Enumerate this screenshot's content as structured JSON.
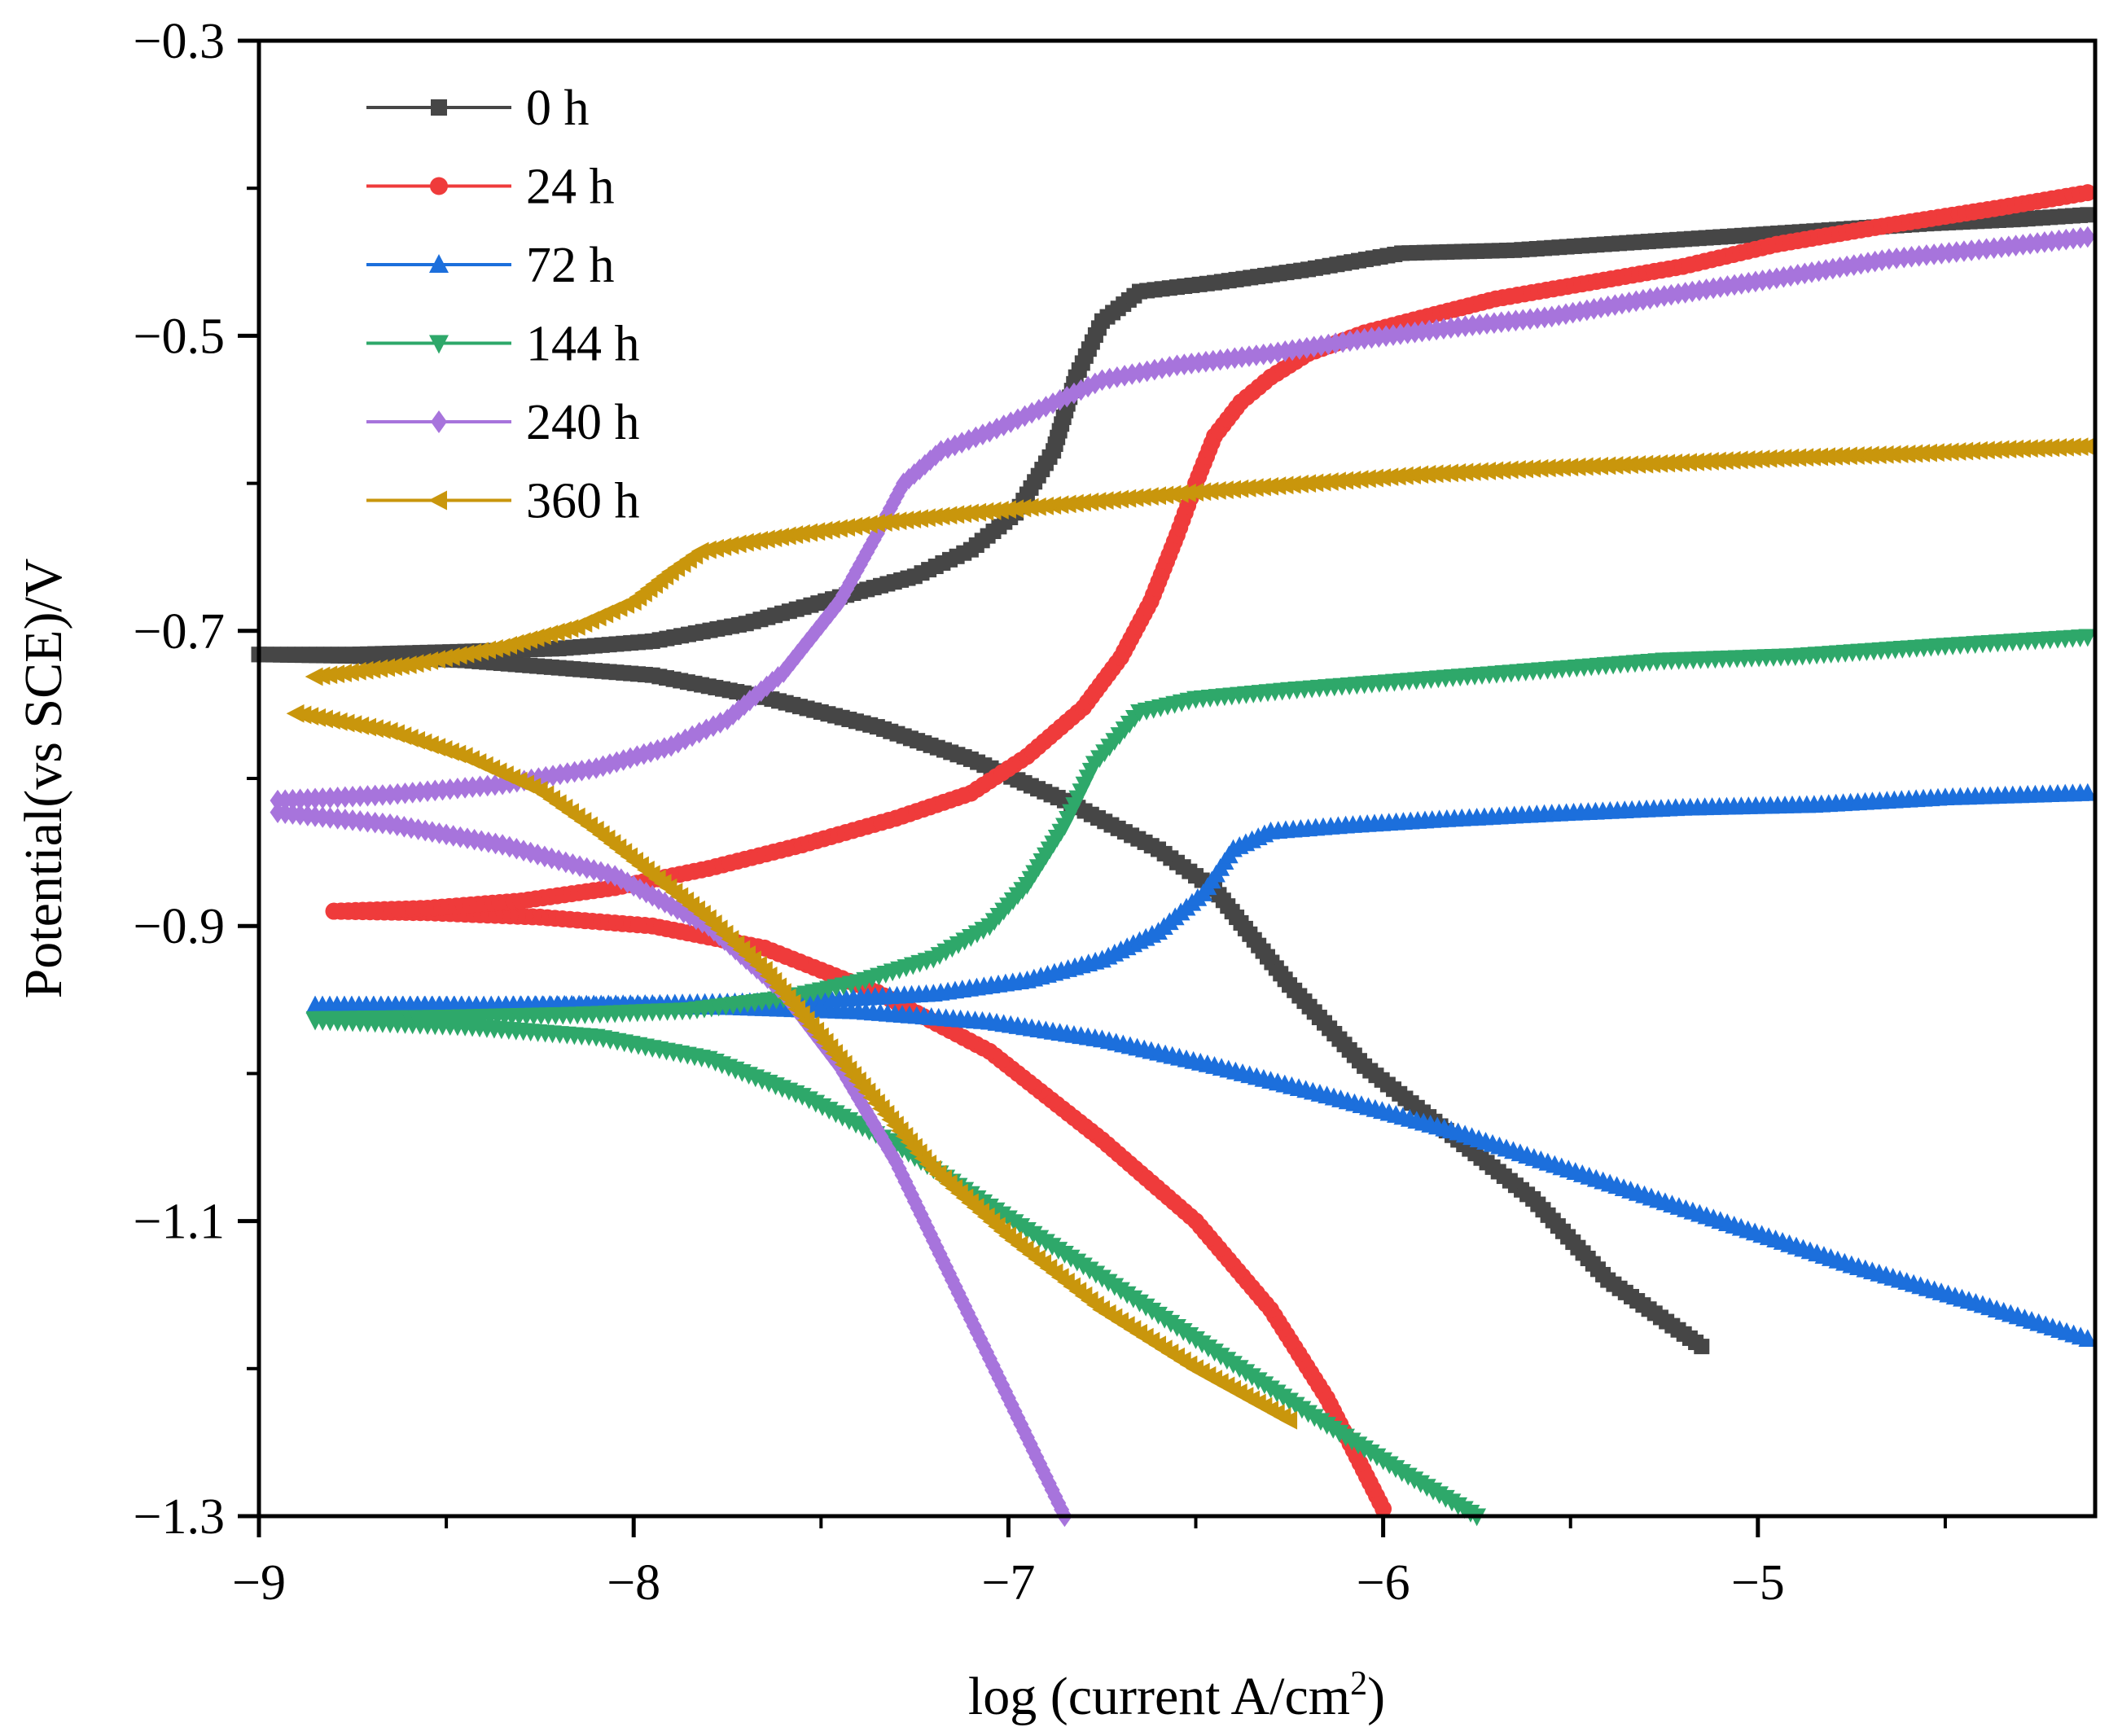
{
  "chart_data": {
    "type": "line",
    "title": "",
    "xlabel": {
      "main": "log (current A/cm",
      "sup": "2",
      "close": ")"
    },
    "ylabel": "Potential(vs SCE)/V",
    "xlim": [
      -9,
      -4.1
    ],
    "ylim": [
      -1.3,
      -0.3
    ],
    "x_ticks": [
      -9,
      -8,
      -7,
      -6,
      -5
    ],
    "x_tick_labels": [
      "−9",
      "−8",
      "−7",
      "−6",
      "−5"
    ],
    "y_ticks": [
      -0.3,
      -0.5,
      -0.7,
      -0.9,
      -1.1,
      -1.3
    ],
    "y_tick_labels": [
      "−0.3",
      "−0.5",
      "−0.7",
      "−0.9",
      "−1.1",
      "−1.3"
    ],
    "legend_position": "top-left",
    "series": [
      {
        "name": "0 h",
        "color": "#464646",
        "marker": "square",
        "cathodic": [
          [
            -5.15,
            -1.185
          ],
          [
            -5.4,
            -1.14
          ],
          [
            -5.6,
            -1.085
          ],
          [
            -5.8,
            -1.045
          ],
          [
            -6.05,
            -0.995
          ],
          [
            -6.25,
            -0.94
          ],
          [
            -6.45,
            -0.875
          ],
          [
            -6.6,
            -0.848
          ],
          [
            -6.85,
            -0.815
          ],
          [
            -7.1,
            -0.787
          ],
          [
            -7.35,
            -0.765
          ],
          [
            -7.65,
            -0.745
          ],
          [
            -7.95,
            -0.73
          ],
          [
            -8.2,
            -0.725
          ],
          [
            -8.45,
            -0.72
          ],
          [
            -8.75,
            -0.717
          ],
          [
            -9.0,
            -0.716
          ]
        ],
        "anodic": [
          [
            -9.0,
            -0.716
          ],
          [
            -8.75,
            -0.716
          ],
          [
            -8.45,
            -0.714
          ],
          [
            -8.2,
            -0.712
          ],
          [
            -7.95,
            -0.707
          ],
          [
            -7.7,
            -0.695
          ],
          [
            -7.45,
            -0.677
          ],
          [
            -7.25,
            -0.663
          ],
          [
            -7.1,
            -0.645
          ],
          [
            -6.98,
            -0.62
          ],
          [
            -6.88,
            -0.578
          ],
          [
            -6.82,
            -0.528
          ],
          [
            -6.75,
            -0.49
          ],
          [
            -6.65,
            -0.47
          ],
          [
            -6.45,
            -0.464
          ],
          [
            -6.2,
            -0.455
          ],
          [
            -5.95,
            -0.444
          ],
          [
            -5.65,
            -0.442
          ],
          [
            -5.35,
            -0.437
          ],
          [
            -5.1,
            -0.433
          ],
          [
            -4.85,
            -0.429
          ],
          [
            -4.55,
            -0.424
          ],
          [
            -4.3,
            -0.421
          ],
          [
            -4.12,
            -0.418
          ]
        ]
      },
      {
        "name": "24 h",
        "color": "#ef3b3b",
        "marker": "circle",
        "cathodic": [
          [
            -6.0,
            -1.295
          ],
          [
            -6.15,
            -1.22
          ],
          [
            -6.3,
            -1.16
          ],
          [
            -6.5,
            -1.1
          ],
          [
            -6.75,
            -1.045
          ],
          [
            -7.05,
            -0.985
          ],
          [
            -7.35,
            -0.945
          ],
          [
            -7.65,
            -0.915
          ],
          [
            -7.95,
            -0.9
          ],
          [
            -8.25,
            -0.894
          ],
          [
            -8.55,
            -0.891
          ],
          [
            -8.8,
            -0.89
          ]
        ],
        "anodic": [
          [
            -8.8,
            -0.89
          ],
          [
            -8.55,
            -0.888
          ],
          [
            -8.3,
            -0.883
          ],
          [
            -8.05,
            -0.874
          ],
          [
            -7.8,
            -0.861
          ],
          [
            -7.55,
            -0.845
          ],
          [
            -7.3,
            -0.827
          ],
          [
            -7.1,
            -0.81
          ],
          [
            -6.95,
            -0.785
          ],
          [
            -6.8,
            -0.752
          ],
          [
            -6.7,
            -0.718
          ],
          [
            -6.62,
            -0.68
          ],
          [
            -6.55,
            -0.635
          ],
          [
            -6.5,
            -0.6
          ],
          [
            -6.45,
            -0.568
          ],
          [
            -6.38,
            -0.545
          ],
          [
            -6.3,
            -0.528
          ],
          [
            -6.2,
            -0.512
          ],
          [
            -6.05,
            -0.498
          ],
          [
            -5.9,
            -0.488
          ],
          [
            -5.7,
            -0.475
          ],
          [
            -5.45,
            -0.464
          ],
          [
            -5.2,
            -0.453
          ],
          [
            -4.95,
            -0.438
          ],
          [
            -4.65,
            -0.425
          ],
          [
            -4.35,
            -0.413
          ],
          [
            -4.12,
            -0.403
          ]
        ]
      },
      {
        "name": "72 h",
        "color": "#1c6fdc",
        "marker": "triangle-up",
        "cathodic": [
          [
            -4.12,
            -1.18
          ],
          [
            -4.4,
            -1.157
          ],
          [
            -4.75,
            -1.13
          ],
          [
            -5.1,
            -1.1
          ],
          [
            -5.45,
            -1.07
          ],
          [
            -5.8,
            -1.04
          ],
          [
            -6.15,
            -1.015
          ],
          [
            -6.45,
            -0.995
          ],
          [
            -6.75,
            -0.977
          ],
          [
            -7.05,
            -0.965
          ],
          [
            -7.4,
            -0.958
          ],
          [
            -7.75,
            -0.955
          ],
          [
            -8.1,
            -0.954
          ],
          [
            -8.5,
            -0.954
          ],
          [
            -8.85,
            -0.954
          ]
        ],
        "anodic": [
          [
            -8.85,
            -0.954
          ],
          [
            -8.4,
            -0.954
          ],
          [
            -7.95,
            -0.953
          ],
          [
            -7.55,
            -0.951
          ],
          [
            -7.2,
            -0.946
          ],
          [
            -6.95,
            -0.937
          ],
          [
            -6.75,
            -0.923
          ],
          [
            -6.6,
            -0.904
          ],
          [
            -6.48,
            -0.878
          ],
          [
            -6.4,
            -0.848
          ],
          [
            -6.3,
            -0.836
          ],
          [
            -6.1,
            -0.832
          ],
          [
            -5.85,
            -0.828
          ],
          [
            -5.55,
            -0.824
          ],
          [
            -5.2,
            -0.82
          ],
          [
            -4.85,
            -0.818
          ],
          [
            -4.5,
            -0.813
          ],
          [
            -4.12,
            -0.81
          ]
        ]
      },
      {
        "name": "144 h",
        "color": "#2ea86a",
        "marker": "triangle-down",
        "cathodic": [
          [
            -5.75,
            -1.3
          ],
          [
            -5.95,
            -1.27
          ],
          [
            -6.2,
            -1.23
          ],
          [
            -6.5,
            -1.18
          ],
          [
            -6.8,
            -1.13
          ],
          [
            -7.05,
            -1.09
          ],
          [
            -7.3,
            -1.048
          ],
          [
            -7.55,
            -1.015
          ],
          [
            -7.8,
            -0.99
          ],
          [
            -8.1,
            -0.975
          ],
          [
            -8.45,
            -0.968
          ],
          [
            -8.85,
            -0.964
          ]
        ],
        "anodic": [
          [
            -8.85,
            -0.963
          ],
          [
            -8.5,
            -0.962
          ],
          [
            -8.15,
            -0.96
          ],
          [
            -7.85,
            -0.957
          ],
          [
            -7.6,
            -0.949
          ],
          [
            -7.4,
            -0.938
          ],
          [
            -7.2,
            -0.922
          ],
          [
            -7.05,
            -0.9
          ],
          [
            -6.95,
            -0.872
          ],
          [
            -6.85,
            -0.832
          ],
          [
            -6.77,
            -0.79
          ],
          [
            -6.65,
            -0.755
          ],
          [
            -6.5,
            -0.746
          ],
          [
            -6.25,
            -0.74
          ],
          [
            -5.95,
            -0.734
          ],
          [
            -5.6,
            -0.727
          ],
          [
            -5.25,
            -0.72
          ],
          [
            -4.9,
            -0.717
          ],
          [
            -4.5,
            -0.71
          ],
          [
            -4.12,
            -0.704
          ]
        ]
      },
      {
        "name": "240 h",
        "color": "#a774dc",
        "marker": "diamond",
        "cathodic": [
          [
            -6.85,
            -1.3
          ],
          [
            -7.0,
            -1.22
          ],
          [
            -7.15,
            -1.14
          ],
          [
            -7.3,
            -1.06
          ],
          [
            -7.45,
            -0.995
          ],
          [
            -7.6,
            -0.945
          ],
          [
            -7.8,
            -0.9
          ],
          [
            -8.05,
            -0.866
          ],
          [
            -8.35,
            -0.845
          ],
          [
            -8.65,
            -0.831
          ],
          [
            -8.95,
            -0.823
          ],
          [
            -9.25,
            -0.819
          ],
          [
            -9.55,
            -0.817
          ]
        ],
        "anodic": [
          [
            -9.55,
            -0.817
          ],
          [
            -9.25,
            -0.817
          ],
          [
            -8.95,
            -0.815
          ],
          [
            -8.65,
            -0.811
          ],
          [
            -8.35,
            -0.804
          ],
          [
            -8.1,
            -0.793
          ],
          [
            -7.9,
            -0.778
          ],
          [
            -7.75,
            -0.76
          ],
          [
            -7.6,
            -0.728
          ],
          [
            -7.45,
            -0.68
          ],
          [
            -7.35,
            -0.634
          ],
          [
            -7.28,
            -0.6
          ],
          [
            -7.18,
            -0.578
          ],
          [
            -7.05,
            -0.565
          ],
          [
            -6.9,
            -0.548
          ],
          [
            -6.75,
            -0.53
          ],
          [
            -6.55,
            -0.52
          ],
          [
            -6.3,
            -0.512
          ],
          [
            -6.05,
            -0.502
          ],
          [
            -5.8,
            -0.494
          ],
          [
            -5.55,
            -0.487
          ],
          [
            -5.25,
            -0.473
          ],
          [
            -4.95,
            -0.461
          ],
          [
            -4.65,
            -0.448
          ],
          [
            -4.35,
            -0.44
          ],
          [
            -4.12,
            -0.433
          ]
        ]
      },
      {
        "name": "360 h",
        "color": "#c9960c",
        "marker": "triangle-left",
        "cathodic": [
          [
            -6.25,
            -1.235
          ],
          [
            -6.5,
            -1.2
          ],
          [
            -6.75,
            -1.16
          ],
          [
            -7.0,
            -1.11
          ],
          [
            -7.2,
            -1.065
          ],
          [
            -7.35,
            -1.02
          ],
          [
            -7.5,
            -0.975
          ],
          [
            -7.65,
            -0.93
          ],
          [
            -7.8,
            -0.895
          ],
          [
            -7.95,
            -0.865
          ],
          [
            -8.1,
            -0.835
          ],
          [
            -8.25,
            -0.808
          ],
          [
            -8.45,
            -0.785
          ],
          [
            -8.65,
            -0.768
          ],
          [
            -8.9,
            -0.756
          ],
          [
            -9.15,
            -0.749
          ],
          [
            -9.4,
            -0.745
          ],
          [
            -9.6,
            -0.743
          ]
        ],
        "anodic": [
          [
            -9.6,
            -0.743
          ],
          [
            -9.35,
            -0.741
          ],
          [
            -9.1,
            -0.737
          ],
          [
            -8.85,
            -0.731
          ],
          [
            -8.6,
            -0.723
          ],
          [
            -8.35,
            -0.711
          ],
          [
            -8.15,
            -0.697
          ],
          [
            -8.0,
            -0.68
          ],
          [
            -7.9,
            -0.66
          ],
          [
            -7.82,
            -0.646
          ],
          [
            -7.7,
            -0.64
          ],
          [
            -7.55,
            -0.634
          ],
          [
            -7.35,
            -0.627
          ],
          [
            -7.1,
            -0.62
          ],
          [
            -6.8,
            -0.613
          ],
          [
            -6.5,
            -0.606
          ],
          [
            -6.2,
            -0.6
          ],
          [
            -5.9,
            -0.594
          ],
          [
            -5.6,
            -0.59
          ],
          [
            -5.3,
            -0.587
          ],
          [
            -4.95,
            -0.583
          ],
          [
            -4.6,
            -0.58
          ],
          [
            -4.35,
            -0.577
          ],
          [
            -4.12,
            -0.575
          ]
        ]
      }
    ]
  }
}
